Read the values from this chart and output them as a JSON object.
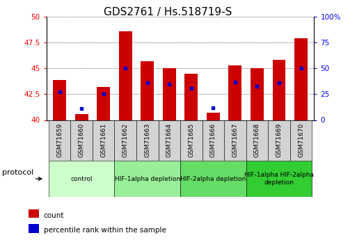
{
  "title": "GDS2761 / Hs.518719-S",
  "samples": [
    "GSM71659",
    "GSM71660",
    "GSM71661",
    "GSM71662",
    "GSM71663",
    "GSM71664",
    "GSM71665",
    "GSM71666",
    "GSM71667",
    "GSM71668",
    "GSM71669",
    "GSM71670"
  ],
  "bar_bottoms": [
    40,
    40,
    40,
    40,
    40,
    40,
    40,
    40,
    40,
    40,
    40,
    40
  ],
  "bar_tops": [
    43.9,
    40.6,
    43.2,
    48.6,
    45.7,
    45.0,
    44.5,
    40.7,
    45.3,
    45.0,
    45.8,
    47.9
  ],
  "dot_values": [
    42.7,
    41.1,
    42.5,
    45.0,
    43.6,
    43.5,
    43.1,
    41.2,
    43.7,
    43.3,
    43.6,
    45.0
  ],
  "ylim_left": [
    40,
    50
  ],
  "ylim_right": [
    0,
    100
  ],
  "yticks_left": [
    40,
    42.5,
    45,
    47.5,
    50
  ],
  "yticks_right": [
    0,
    25,
    50,
    75,
    100
  ],
  "bar_color": "#cc0000",
  "dot_color": "#0000cc",
  "groups": [
    {
      "label": "control",
      "start": 0,
      "end": 3,
      "color": "#ccffcc"
    },
    {
      "label": "HIF-1alpha depletion",
      "start": 3,
      "end": 6,
      "color": "#99ee99"
    },
    {
      "label": "HIF-2alpha depletion",
      "start": 6,
      "end": 9,
      "color": "#66dd66"
    },
    {
      "label": "HIF-1alpha HIF-2alpha\ndepletion",
      "start": 9,
      "end": 12,
      "color": "#33cc33"
    }
  ],
  "protocol_label": "protocol",
  "legend_count_label": "count",
  "legend_percentile_label": "percentile rank within the sample",
  "title_fontsize": 11,
  "tick_label_fontsize": 6.5,
  "axis_tick_fontsize": 7.5,
  "group_label_fontsize": 6.5,
  "legend_fontsize": 7.5
}
